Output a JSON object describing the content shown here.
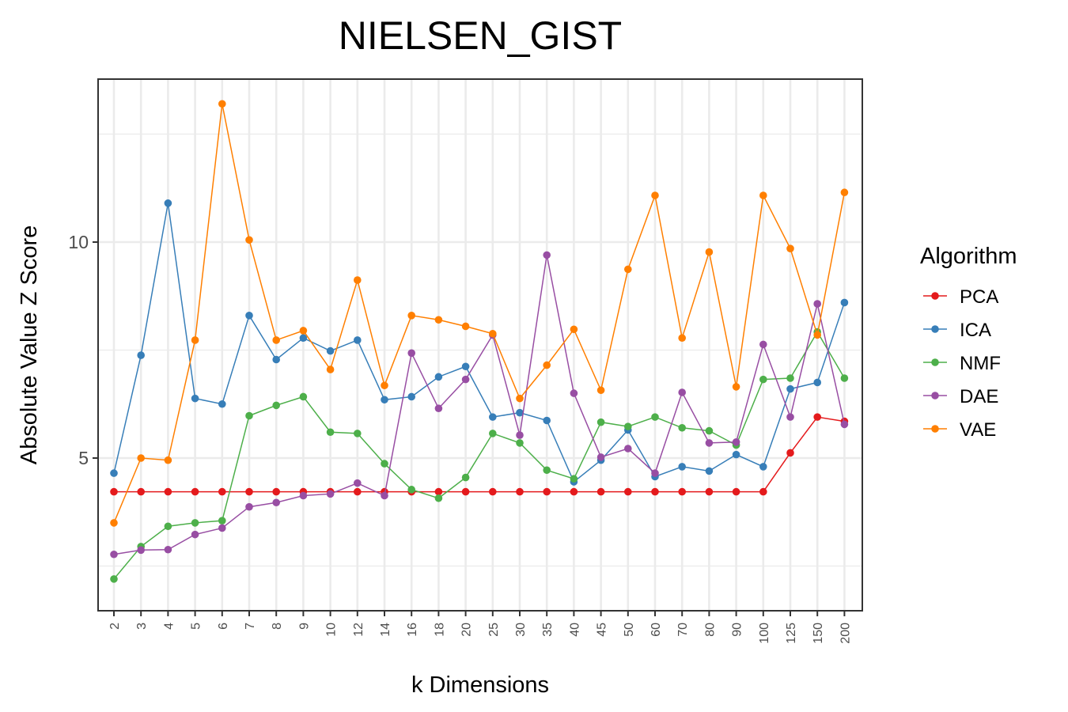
{
  "chart_data": {
    "type": "line",
    "title": "NIELSEN_GIST",
    "xlabel": "k Dimensions",
    "ylabel": "Absolute Value Z Score",
    "categories": [
      "2",
      "3",
      "4",
      "5",
      "6",
      "7",
      "8",
      "9",
      "10",
      "12",
      "14",
      "16",
      "18",
      "20",
      "25",
      "30",
      "35",
      "40",
      "45",
      "50",
      "60",
      "70",
      "80",
      "90",
      "100",
      "125",
      "150",
      "200"
    ],
    "ylim": [
      1.5,
      13.5
    ],
    "yticks": [
      5,
      10
    ],
    "grid": true,
    "legend": {
      "title": "Algorithm",
      "placement": "right"
    },
    "series": [
      {
        "name": "PCA",
        "color": "#E41A1C",
        "values": [
          4.22,
          4.22,
          4.22,
          4.22,
          4.22,
          4.22,
          4.22,
          4.22,
          4.22,
          4.22,
          4.22,
          4.22,
          4.22,
          4.22,
          4.22,
          4.22,
          4.22,
          4.22,
          4.22,
          4.22,
          4.22,
          4.22,
          4.22,
          4.22,
          4.22,
          5.12,
          5.95,
          5.85
        ]
      },
      {
        "name": "ICA",
        "color": "#377EB8",
        "values": [
          4.65,
          7.38,
          10.9,
          6.38,
          6.25,
          8.3,
          7.28,
          7.78,
          7.48,
          7.73,
          6.35,
          6.42,
          6.88,
          7.12,
          5.95,
          6.05,
          5.87,
          4.45,
          4.95,
          5.65,
          4.57,
          4.8,
          4.7,
          5.08,
          4.8,
          6.6,
          6.75,
          8.6
        ]
      },
      {
        "name": "NMF",
        "color": "#4DAF4A",
        "values": [
          2.2,
          2.95,
          3.42,
          3.5,
          3.55,
          5.98,
          6.22,
          6.42,
          5.6,
          5.57,
          4.87,
          4.27,
          4.07,
          4.55,
          5.57,
          5.35,
          4.72,
          4.52,
          5.83,
          5.73,
          5.95,
          5.7,
          5.63,
          5.3,
          6.82,
          6.85,
          7.92,
          6.85
        ]
      },
      {
        "name": "DAE",
        "color": "#984EA3",
        "values": [
          2.77,
          2.87,
          2.88,
          3.23,
          3.38,
          3.87,
          3.97,
          4.13,
          4.17,
          4.42,
          4.13,
          7.43,
          6.15,
          6.82,
          7.85,
          5.53,
          9.7,
          6.5,
          5.02,
          5.22,
          4.65,
          6.52,
          5.35,
          5.37,
          7.63,
          5.95,
          8.57,
          5.78
        ]
      },
      {
        "name": "VAE",
        "color": "#FF7F00",
        "values": [
          3.5,
          5.0,
          4.95,
          7.73,
          13.2,
          10.05,
          7.73,
          7.95,
          7.05,
          9.12,
          6.68,
          8.3,
          8.2,
          8.05,
          7.88,
          6.38,
          7.15,
          7.98,
          6.57,
          9.37,
          11.08,
          7.78,
          9.77,
          6.65,
          11.08,
          9.85,
          7.85,
          11.15
        ]
      }
    ]
  }
}
